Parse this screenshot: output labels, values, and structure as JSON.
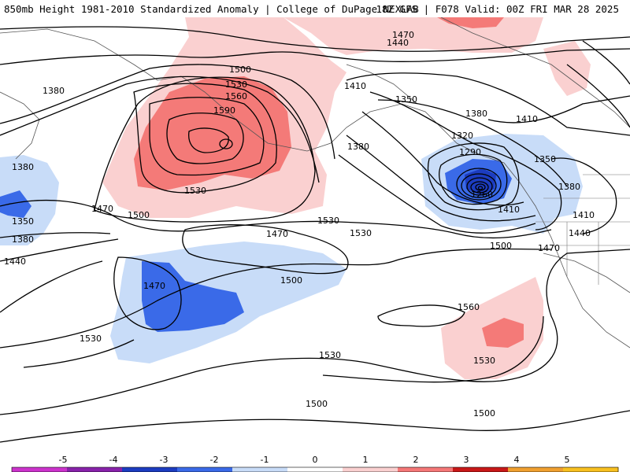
{
  "header": {
    "left_title": "850mb Height 1981-2010 Standardized Anomaly | College of DuPage NEXLAB",
    "right_title": "18Z GFS | F078 Valid: 00Z FRI MAR 28 2025"
  },
  "contour_labels": [
    {
      "text": "1470"
    },
    {
      "text": "1440"
    },
    {
      "text": "1500"
    },
    {
      "text": "1530"
    },
    {
      "text": "1560"
    },
    {
      "text": "1590"
    },
    {
      "text": "1530"
    },
    {
      "text": "1500"
    },
    {
      "text": "1470"
    },
    {
      "text": "1380"
    },
    {
      "text": "1380"
    },
    {
      "text": "1350"
    },
    {
      "text": "1380"
    },
    {
      "text": "1440"
    },
    {
      "text": "1410"
    },
    {
      "text": "1350"
    },
    {
      "text": "1380"
    },
    {
      "text": "1320"
    },
    {
      "text": "1410"
    },
    {
      "text": "1290"
    },
    {
      "text": "1380"
    },
    {
      "text": "1350"
    },
    {
      "text": "1260"
    },
    {
      "text": "1380"
    },
    {
      "text": "1410"
    },
    {
      "text": "1410"
    },
    {
      "text": "1440"
    },
    {
      "text": "1470"
    },
    {
      "text": "1470"
    },
    {
      "text": "1530"
    },
    {
      "text": "1530"
    },
    {
      "text": "1500"
    },
    {
      "text": "1500"
    },
    {
      "text": "1470"
    },
    {
      "text": "1560"
    },
    {
      "text": "1530"
    },
    {
      "text": "1530"
    },
    {
      "text": "1530"
    },
    {
      "text": "1500"
    },
    {
      "text": "1500"
    }
  ],
  "colorbar": {
    "ticks": [
      "-5",
      "-4",
      "-3",
      "-2",
      "-1",
      "0",
      "1",
      "2",
      "3",
      "4",
      "5"
    ],
    "colors": [
      "#cc33cc",
      "#8822aa",
      "#1c3cc0",
      "#3a6ae8",
      "#c8dcf8",
      "#ffffff",
      "#fad0d0",
      "#f57878",
      "#c81818",
      "#f0a030",
      "#f8c020"
    ]
  }
}
